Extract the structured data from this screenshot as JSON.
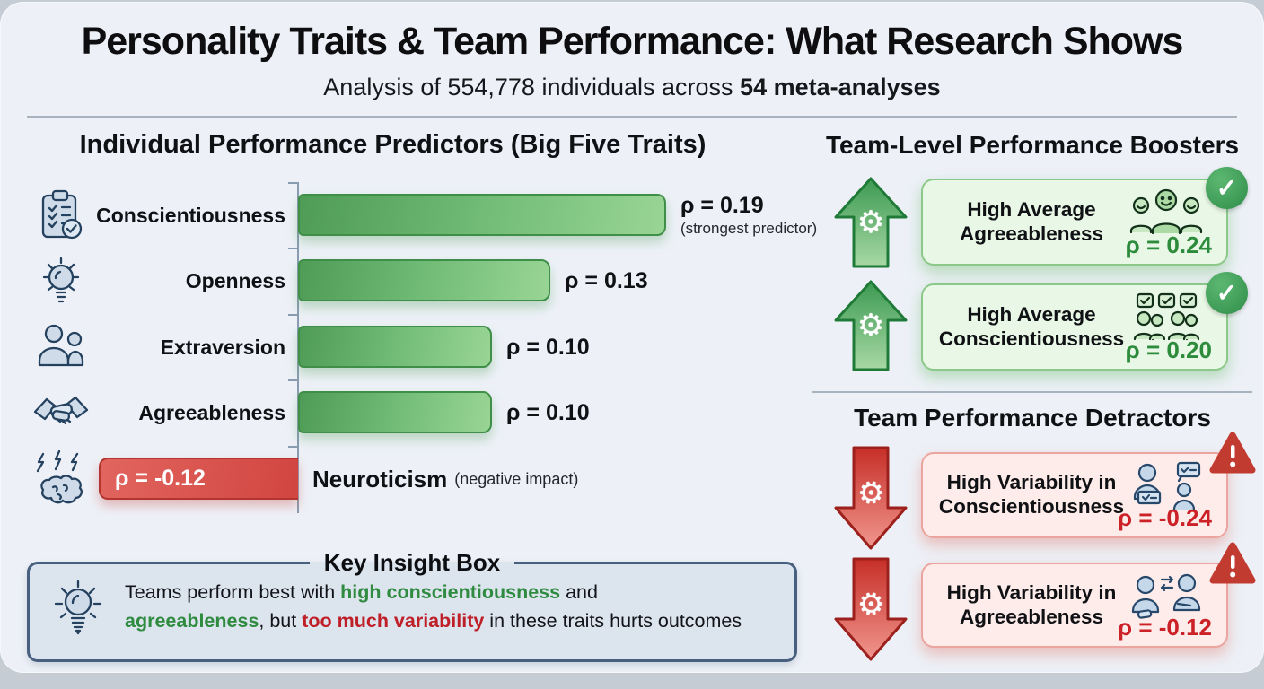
{
  "header": {
    "title": "Personality Traits & Team Performance: What Research Shows",
    "subtitle_prefix": "Analysis of 554,778 individuals across ",
    "subtitle_bold": "54 meta-analyses"
  },
  "individual": {
    "heading": "Individual Performance Predictors (Big Five Traits)",
    "rows": [
      {
        "trait": "Conscientiousness",
        "value_label": "ρ = 0.19",
        "note": "(strongest predictor)",
        "icon": "checklist-clipboard-icon"
      },
      {
        "trait": "Openness",
        "value_label": "ρ = 0.13",
        "icon": "lightbulb-icon"
      },
      {
        "trait": "Extraversion",
        "value_label": "ρ = 0.10",
        "icon": "two-people-icon"
      },
      {
        "trait": "Agreeableness",
        "value_label": "ρ = 0.10",
        "icon": "handshake-icon"
      },
      {
        "trait": "Neuroticism",
        "value_label": "ρ = -0.12",
        "note": "(negative impact)",
        "icon": "stressed-brain-icon"
      }
    ]
  },
  "chart_data": {
    "type": "bar",
    "orientation": "horizontal",
    "title": "Individual Performance Predictors (Big Five Traits)",
    "categories": [
      "Conscientiousness",
      "Openness",
      "Extraversion",
      "Agreeableness",
      "Neuroticism"
    ],
    "values": [
      0.19,
      0.13,
      0.1,
      0.1,
      -0.12
    ],
    "value_labels": [
      "ρ = 0.19",
      "ρ = 0.13",
      "ρ = 0.10",
      "ρ = 0.10",
      "ρ = -0.12"
    ],
    "annotations": [
      "(strongest predictor)",
      "",
      "",
      "",
      "(negative impact)"
    ],
    "xlabel": "",
    "ylabel": "",
    "xlim": [
      -0.15,
      0.25
    ],
    "grid": false,
    "legend": "none",
    "positive_color": "#5aa860",
    "negative_color": "#d6524c"
  },
  "boosters": {
    "heading": "Team-Level Performance Boosters",
    "cards": [
      {
        "title_line1": "High Average",
        "title_line2": "Agreeableness",
        "value_label": "ρ = 0.24",
        "value": 0.24,
        "icon": "smiling-team-icon",
        "badge": "check"
      },
      {
        "title_line1": "High Average",
        "title_line2": "Conscientiousness",
        "value_label": "ρ = 0.20",
        "value": 0.2,
        "icon": "team-checklist-icon",
        "badge": "check"
      }
    ]
  },
  "detractors": {
    "heading": "Team Performance Detractors",
    "cards": [
      {
        "title_line1": "High Variability in",
        "title_line2": "Conscientiousness",
        "value_label": "ρ = -0.24",
        "value": -0.24,
        "icon": "mismatched-workers-icon",
        "badge": "warning"
      },
      {
        "title_line1": "High Variability in",
        "title_line2": "Agreeableness",
        "value_label": "ρ = -0.12",
        "value": -0.12,
        "icon": "people-exchange-icon",
        "badge": "warning"
      }
    ]
  },
  "insight": {
    "title": "Key Insight Box",
    "segments": [
      {
        "text": "Teams perform best with "
      },
      {
        "text": "high conscientiousness",
        "style": "green"
      },
      {
        "text": " and"
      },
      {
        "break": true
      },
      {
        "text": "agreeableness",
        "style": "green"
      },
      {
        "text": ", but "
      },
      {
        "text": "too much variability",
        "style": "red"
      },
      {
        "text": " in these traits hurts outcomes"
      }
    ]
  },
  "colors": {
    "page_background": "#edf1f7",
    "positive_green": "#2e8b3f",
    "negative_red": "#c2312b",
    "booster_card_bg": "#e9f7e6",
    "detractor_card_bg": "#fdecea",
    "insight_box_bg": "#dce4ee",
    "insight_border": "#48607f"
  }
}
